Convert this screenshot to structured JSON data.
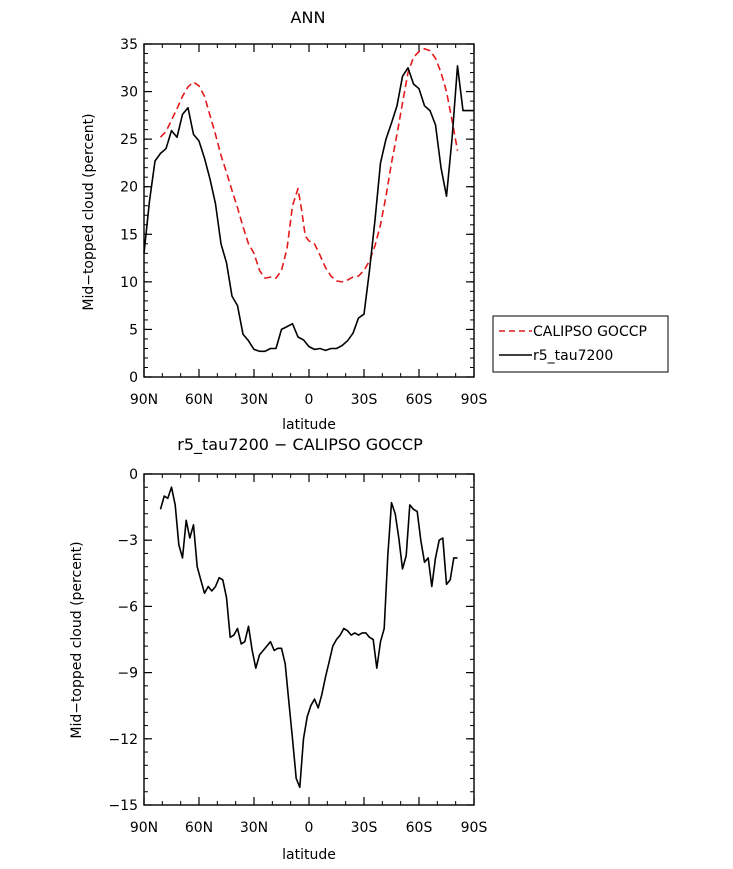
{
  "chart_data": [
    {
      "type": "line",
      "title": "ANN",
      "xlabel": "latitude",
      "ylabel": "Mid−topped cloud (percent)",
      "xlim": [
        90,
        -90
      ],
      "ylim": [
        0,
        35
      ],
      "xticks": [
        90,
        60,
        30,
        0,
        -30,
        -60,
        -90
      ],
      "xtick_labels": [
        "90N",
        "60N",
        "30N",
        "0",
        "30S",
        "60S",
        "90S"
      ],
      "yticks": [
        0,
        5,
        10,
        15,
        20,
        25,
        30,
        35
      ],
      "ytick_labels": [
        "0",
        "5",
        "10",
        "15",
        "20",
        "25",
        "30",
        "35"
      ],
      "grid": false,
      "legend_position": "outside-right",
      "series": [
        {
          "name": "CALIPSO GOCCP",
          "color": "#e41a1c",
          "dash": "dashed",
          "x": [
            81,
            78,
            75,
            72,
            69,
            66,
            63,
            60,
            57,
            54,
            51,
            48,
            45,
            42,
            39,
            36,
            33,
            30,
            27,
            24,
            21,
            18,
            15,
            12,
            9,
            6,
            4,
            2,
            0,
            -3,
            -6,
            -9,
            -12,
            -15,
            -18,
            -21,
            -24,
            -27,
            -30,
            -33,
            -36,
            -39,
            -42,
            -45,
            -48,
            -51,
            -54,
            -57,
            -60,
            -63,
            -66,
            -69,
            -72,
            -75,
            -78,
            -81
          ],
          "y": [
            25.2,
            25.8,
            27.0,
            28.2,
            29.5,
            30.5,
            31.0,
            30.6,
            29.5,
            27.5,
            25.5,
            23.3,
            21.5,
            19.6,
            17.8,
            15.8,
            14.0,
            13.0,
            11.2,
            10.4,
            10.5,
            10.4,
            11.2,
            13.5,
            18.0,
            19.8,
            17.5,
            14.8,
            14.3,
            14.0,
            12.8,
            11.5,
            10.6,
            10.1,
            10.0,
            10.2,
            10.5,
            10.6,
            11.2,
            12.2,
            13.8,
            16.0,
            19.0,
            22.5,
            25.5,
            28.8,
            32.0,
            33.6,
            34.2,
            34.5,
            34.3,
            33.5,
            32.0,
            30.0,
            27.0,
            23.8
          ]
        },
        {
          "name": "r5_tau7200",
          "color": "#000000",
          "dash": "solid",
          "x": [
            90,
            87,
            84,
            81,
            78,
            75,
            72,
            69,
            66,
            63,
            60,
            57,
            54,
            51,
            48,
            45,
            42,
            39,
            36,
            33,
            30,
            27,
            24,
            21,
            18,
            15,
            12,
            9,
            6,
            3,
            0,
            -3,
            -6,
            -9,
            -12,
            -15,
            -18,
            -21,
            -24,
            -27,
            -30,
            -33,
            -36,
            -39,
            -42,
            -45,
            -48,
            -51,
            -54,
            -57,
            -60,
            -63,
            -66,
            -69,
            -72,
            -75,
            -78,
            -81,
            -84,
            -87,
            -88.5,
            -90
          ],
          "y": [
            13.0,
            18.5,
            22.7,
            23.5,
            24.0,
            25.9,
            25.2,
            27.6,
            28.3,
            25.5,
            24.8,
            23.0,
            20.8,
            18.2,
            14.0,
            12.0,
            8.5,
            7.5,
            4.5,
            3.8,
            2.9,
            2.7,
            2.7,
            3.0,
            3.0,
            5.0,
            5.3,
            5.6,
            4.2,
            3.9,
            3.2,
            2.9,
            3.0,
            2.8,
            3.0,
            3.0,
            3.3,
            3.8,
            4.6,
            6.2,
            6.6,
            11.2,
            16.5,
            22.5,
            25.0,
            26.7,
            28.5,
            31.6,
            32.5,
            30.8,
            30.3,
            28.5,
            28.0,
            26.5,
            22.0,
            19.0,
            25.0,
            32.7,
            28.0,
            28.0,
            28.0,
            28.0
          ]
        }
      ]
    },
    {
      "type": "line",
      "title": "r5_tau7200 − CALIPSO GOCCP",
      "xlabel": "latitude",
      "ylabel": "Mid−topped cloud (percent)",
      "xlim": [
        90,
        -90
      ],
      "ylim": [
        -15,
        0
      ],
      "xticks": [
        90,
        60,
        30,
        0,
        -30,
        -60,
        -90
      ],
      "xtick_labels": [
        "90N",
        "60N",
        "30N",
        "0",
        "30S",
        "60S",
        "90S"
      ],
      "yticks": [
        0,
        -3,
        -6,
        -9,
        -12,
        -15
      ],
      "ytick_labels": [
        "0",
        "−3",
        "−6",
        "−9",
        "−12",
        "−15"
      ],
      "grid": false,
      "series": [
        {
          "color": "#000000",
          "dash": "solid",
          "x": [
            81,
            79,
            77,
            75,
            73,
            71,
            69,
            67,
            65,
            63,
            61,
            59,
            57,
            55,
            53,
            51,
            49,
            47,
            45,
            43,
            41,
            39,
            37,
            35,
            33,
            31,
            29,
            27,
            25,
            23,
            21,
            19,
            17,
            15,
            13,
            11,
            9,
            7,
            5,
            3,
            1,
            -1,
            -3,
            -5,
            -7,
            -9,
            -11,
            -13,
            -15,
            -17,
            -19,
            -21,
            -23,
            -25,
            -27,
            -29,
            -31,
            -33,
            -35,
            -37,
            -39,
            -41,
            -43,
            -45,
            -47,
            -49,
            -51,
            -53,
            -55,
            -57,
            -59,
            -61,
            -63,
            -65,
            -67,
            -69,
            -71,
            -73,
            -75,
            -77,
            -79,
            -81
          ],
          "y": [
            -1.6,
            -1.0,
            -1.1,
            -0.6,
            -1.4,
            -3.2,
            -3.8,
            -2.1,
            -2.9,
            -2.3,
            -4.2,
            -4.8,
            -5.4,
            -5.1,
            -5.3,
            -5.1,
            -4.7,
            -4.8,
            -5.6,
            -7.4,
            -7.3,
            -7.0,
            -7.7,
            -7.6,
            -6.9,
            -8.0,
            -8.8,
            -8.2,
            -8.0,
            -7.8,
            -7.6,
            -8.0,
            -7.9,
            -7.9,
            -8.6,
            -10.3,
            -12.0,
            -13.8,
            -14.2,
            -12.0,
            -11.0,
            -10.5,
            -10.2,
            -10.6,
            -10.0,
            -9.2,
            -8.5,
            -7.8,
            -7.5,
            -7.3,
            -7.0,
            -7.1,
            -7.3,
            -7.2,
            -7.3,
            -7.2,
            -7.2,
            -7.4,
            -7.5,
            -8.8,
            -7.6,
            -7.0,
            -3.7,
            -1.3,
            -1.8,
            -2.9,
            -4.3,
            -3.7,
            -1.4,
            -1.6,
            -1.7,
            -3.0,
            -4.0,
            -3.8,
            -5.1,
            -3.8,
            -3.0,
            -2.9,
            -5.0,
            -4.8,
            -3.8,
            -3.8
          ]
        }
      ]
    }
  ]
}
